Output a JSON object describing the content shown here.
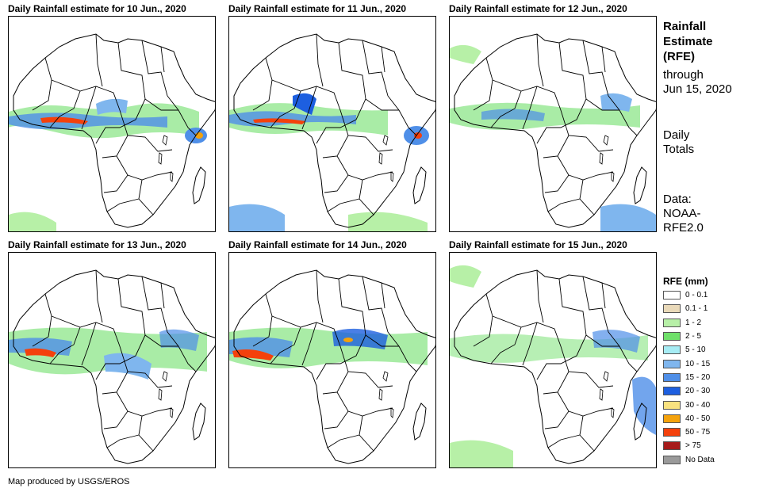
{
  "panels": [
    {
      "title": "Daily Rainfall estimate for 10 Jun., 2020"
    },
    {
      "title": "Daily Rainfall estimate for 11 Jun., 2020"
    },
    {
      "title": "Daily Rainfall estimate for 12 Jun., 2020"
    },
    {
      "title": "Daily Rainfall estimate for 13 Jun., 2020"
    },
    {
      "title": "Daily Rainfall estimate for 14 Jun., 2020"
    },
    {
      "title": "Daily Rainfall estimate for 15 Jun., 2020"
    }
  ],
  "side": {
    "title_lines": [
      "Rainfall",
      "Estimate",
      "(RFE)"
    ],
    "through_lines": [
      "through",
      "Jun 15, 2020"
    ],
    "daily_lines": [
      "Daily",
      "Totals"
    ],
    "data_lines": [
      "Data:",
      "NOAA-",
      "RFE2.0"
    ]
  },
  "legend": {
    "title": "RFE (mm)",
    "items": [
      {
        "label": "0 - 0.1",
        "color": "#ffffff"
      },
      {
        "label": "0.1 - 1",
        "color": "#e9d9b9"
      },
      {
        "label": "1 - 2",
        "color": "#b7f0a7"
      },
      {
        "label": "2 - 5",
        "color": "#6fe06a"
      },
      {
        "label": "5 - 10",
        "color": "#a6ecf4"
      },
      {
        "label": "10 - 15",
        "color": "#7fb6ee"
      },
      {
        "label": "15 - 20",
        "color": "#4f8fe8"
      },
      {
        "label": "20 - 30",
        "color": "#1d5fe0"
      },
      {
        "label": "30 - 40",
        "color": "#f9e27f"
      },
      {
        "label": "40 - 50",
        "color": "#f4a20c"
      },
      {
        "label": "50 - 75",
        "color": "#f4410c"
      },
      {
        "label": "> 75",
        "color": "#a61b1b"
      },
      {
        "label": "No Data",
        "color": "#9a9a9a"
      }
    ]
  },
  "footer": "Map produced by USGS/EROS"
}
